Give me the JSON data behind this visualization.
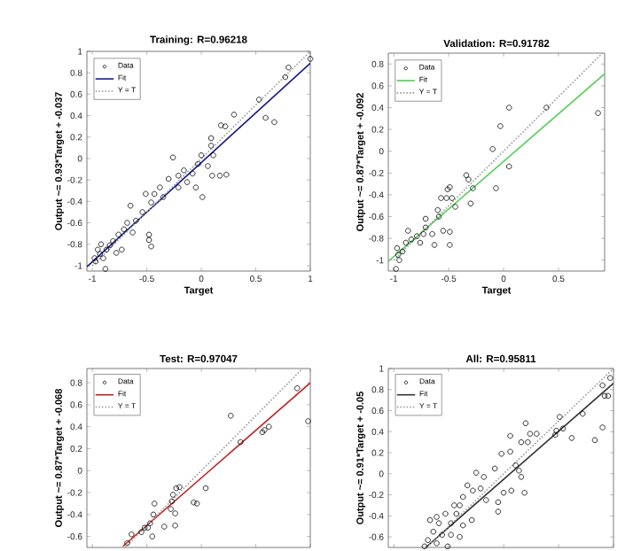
{
  "chart_data": [
    {
      "type": "scatter",
      "title": "Training: R=0.96218",
      "xlabel": "Target",
      "ylabel": "Output ~= 0.93*Target + -0.037",
      "xlim": [
        -1.05,
        1.0
      ],
      "ylim": [
        -1.05,
        1.0
      ],
      "xticks": [
        -1,
        -0.5,
        0,
        0.5,
        1
      ],
      "yticks": [
        -1,
        -0.8,
        -0.6,
        -0.4,
        -0.2,
        0,
        0.2,
        0.4,
        0.6,
        0.8,
        1
      ],
      "legend": "top left",
      "grid": false,
      "series": [
        {
          "name": "Data",
          "type": "scatter",
          "marker": "circle",
          "color": "#000000",
          "x": [
            1.0,
            0.8,
            0.77,
            0.67,
            0.59,
            0.53,
            0.3,
            0.22,
            0.18,
            0.09,
            0.09,
            0.0,
            -0.03,
            0.17,
            0.23,
            0.1,
            0.01,
            -0.26,
            -0.16,
            -0.08,
            -0.21,
            -0.3,
            -0.38,
            -0.43,
            -0.46,
            -0.54,
            -0.6,
            -0.71,
            -0.76,
            -0.48,
            -0.46,
            -0.48,
            -0.63,
            -0.68,
            -0.81,
            -0.87,
            -0.9,
            -0.93,
            -0.97,
            -0.88,
            -0.84,
            -0.78,
            -0.73,
            -0.92,
            -0.95,
            -0.98,
            -0.65,
            -0.51,
            -0.35,
            -0.21,
            -0.13,
            -0.05,
            0.06,
            0.11
          ],
          "values": [
            0.93,
            0.85,
            0.76,
            0.34,
            0.38,
            0.55,
            0.41,
            0.3,
            0.31,
            0.19,
            0.12,
            0.03,
            -0.05,
            -0.16,
            -0.15,
            -0.16,
            -0.36,
            0.01,
            -0.11,
            -0.14,
            -0.16,
            -0.19,
            -0.27,
            -0.33,
            -0.41,
            -0.5,
            -0.58,
            -0.66,
            -0.71,
            -0.71,
            -0.82,
            -0.76,
            -0.69,
            -0.6,
            -0.77,
            -0.85,
            -0.93,
            -0.89,
            -0.96,
            -1.03,
            -0.81,
            -0.88,
            -0.85,
            -0.8,
            -0.85,
            -0.93,
            -0.44,
            -0.33,
            -0.36,
            -0.27,
            -0.22,
            -0.27,
            -0.07,
            0.03
          ]
        },
        {
          "name": "Fit",
          "type": "line",
          "line_style": "solid",
          "color": "#1a1a8c",
          "x": [
            -1.05,
            1.0
          ],
          "values": [
            -1.01,
            0.89
          ]
        },
        {
          "name": "Y = T",
          "type": "line",
          "line_style": "dotted",
          "color": "#9a9a9a",
          "x": [
            -1.0,
            1.0
          ],
          "values": [
            -1.0,
            1.0
          ]
        }
      ]
    },
    {
      "type": "scatter",
      "title": "Validation: R=0.91782",
      "xlabel": "Target",
      "ylabel": "Output ~= 0.87*Target + -0.092",
      "xlim": [
        -1.05,
        0.92
      ],
      "ylim": [
        -1.1,
        0.9
      ],
      "xticks": [
        -1,
        -0.5,
        0,
        0.5
      ],
      "yticks": [
        -1,
        -0.8,
        -0.6,
        -0.4,
        -0.2,
        0,
        0.2,
        0.4,
        0.6,
        0.8
      ],
      "legend": "top left",
      "grid": false,
      "series": [
        {
          "name": "Data",
          "type": "scatter",
          "marker": "circle",
          "color": "#000000",
          "x": [
            0.86,
            0.39,
            0.05,
            -0.03,
            -0.1,
            0.05,
            -0.07,
            -0.28,
            -0.3,
            -0.34,
            -0.32,
            -0.49,
            -0.51,
            -0.47,
            -0.52,
            -0.44,
            -0.57,
            -0.6,
            -0.59,
            -0.71,
            -0.71,
            -0.55,
            -0.49,
            -0.49,
            -0.65,
            -0.73,
            -0.79,
            -0.84,
            -0.89,
            -0.92,
            -0.96,
            -0.95,
            -0.98,
            -0.87,
            -0.76,
            -0.63,
            -0.97
          ],
          "values": [
            0.35,
            0.4,
            0.4,
            0.23,
            0.02,
            -0.14,
            -0.34,
            -0.34,
            -0.48,
            -0.22,
            -0.26,
            -0.33,
            -0.35,
            -0.43,
            -0.43,
            -0.51,
            -0.43,
            -0.54,
            -0.6,
            -0.62,
            -0.7,
            -0.73,
            -0.74,
            -0.86,
            -0.76,
            -0.76,
            -0.78,
            -0.81,
            -0.84,
            -0.92,
            -0.95,
            -1.0,
            -1.08,
            -0.73,
            -0.84,
            -0.86,
            -0.89
          ]
        },
        {
          "name": "Fit",
          "type": "line",
          "line_style": "solid",
          "color": "#4fd04f",
          "x": [
            -1.05,
            0.92
          ],
          "values": [
            -1.01,
            0.71
          ]
        },
        {
          "name": "Y = T",
          "type": "line",
          "line_style": "dotted",
          "color": "#9a9a9a",
          "x": [
            -1.0,
            0.9
          ],
          "values": [
            -1.0,
            0.9
          ]
        }
      ]
    },
    {
      "type": "scatter",
      "title": "Test: R=0.97047",
      "ylabel": "Output ~= 0.87*Target + -0.068",
      "xlim": [
        -1.05,
        1.0
      ],
      "ylim": [
        -0.7,
        0.93
      ],
      "xticks": [
        -1,
        -0.5,
        0,
        0.5,
        1
      ],
      "yticks": [
        -0.6,
        -0.4,
        -0.2,
        0,
        0.2,
        0.4,
        0.6,
        0.8
      ],
      "tick_labels": "y",
      "legend": "top left",
      "grid": false,
      "series": [
        {
          "name": "Data",
          "type": "scatter",
          "marker": "circle",
          "color": "#000000",
          "x": [
            0.88,
            0.98,
            0.62,
            0.58,
            0.56,
            0.36,
            0.27,
            0.04,
            -0.04,
            -0.07,
            -0.23,
            -0.2,
            -0.26,
            -0.27,
            -0.28,
            -0.24,
            -0.24,
            -0.34,
            -0.43,
            -0.44,
            -0.47,
            -0.49,
            -0.52,
            -0.55,
            -0.45,
            -0.64,
            -0.68
          ],
          "values": [
            0.75,
            0.45,
            0.4,
            0.37,
            0.35,
            0.26,
            0.5,
            -0.16,
            -0.3,
            -0.29,
            -0.16,
            -0.15,
            -0.22,
            -0.28,
            -0.35,
            -0.39,
            -0.5,
            -0.51,
            -0.3,
            -0.4,
            -0.48,
            -0.52,
            -0.52,
            -0.56,
            -0.6,
            -0.58,
            -0.66
          ]
        },
        {
          "name": "Fit",
          "type": "line",
          "line_style": "solid",
          "color": "#c02020",
          "x": [
            -0.72,
            1.0
          ],
          "values": [
            -0.69,
            0.8
          ]
        },
        {
          "name": "Y = T",
          "type": "line",
          "line_style": "dotted",
          "color": "#9a9a9a",
          "x": [
            -0.7,
            0.93
          ],
          "values": [
            -0.7,
            0.93
          ]
        }
      ]
    },
    {
      "type": "scatter",
      "title": "All: R=0.95811",
      "ylabel": "Output ~= 0.91*Target + -0.05",
      "xlim": [
        -1.05,
        1.0
      ],
      "ylim": [
        -0.7,
        1.0
      ],
      "xticks": [
        -1,
        -0.5,
        0,
        0.5,
        1
      ],
      "yticks": [
        -0.6,
        -0.4,
        -0.2,
        0,
        0.2,
        0.4,
        0.6,
        0.8,
        1
      ],
      "tick_labels": "y",
      "legend": "top left",
      "grid": false,
      "series": [
        {
          "name": "Data",
          "type": "scatter",
          "marker": "circle",
          "color": "#000000",
          "x": [
            0.97,
            0.9,
            0.92,
            0.95,
            0.9,
            0.83,
            0.72,
            0.51,
            0.54,
            0.48,
            0.47,
            0.62,
            0.2,
            0.24,
            0.3,
            0.16,
            0.22,
            0.06,
            -0.02,
            0.06,
            -0.08,
            0.11,
            0.14,
            0.16,
            0.19,
            0.07,
            0.0,
            -0.05,
            -0.05,
            -0.18,
            -0.25,
            -0.28,
            -0.16,
            -0.21,
            -0.33,
            -0.37,
            -0.4,
            -0.45,
            -0.43,
            -0.53,
            -0.61,
            -0.67,
            -0.59,
            -0.48,
            -0.37,
            -0.29,
            -0.64,
            -0.56,
            -0.48,
            -0.4,
            -0.69,
            -0.61,
            -0.51,
            -0.72
          ],
          "values": [
            0.91,
            0.84,
            0.74,
            0.74,
            0.44,
            0.32,
            0.57,
            0.54,
            0.43,
            0.41,
            0.37,
            0.34,
            0.48,
            0.38,
            0.38,
            0.3,
            0.3,
            0.36,
            0.19,
            0.21,
            0.05,
            0.08,
            0.03,
            -0.03,
            -0.18,
            -0.16,
            -0.18,
            -0.27,
            -0.36,
            -0.03,
            0.01,
            -0.16,
            -0.25,
            -0.14,
            -0.11,
            -0.22,
            -0.3,
            -0.3,
            -0.38,
            -0.38,
            -0.41,
            -0.44,
            -0.47,
            -0.47,
            -0.49,
            -0.44,
            -0.55,
            -0.58,
            -0.58,
            -0.6,
            -0.63,
            -0.66,
            -0.69,
            -0.69
          ]
        },
        {
          "name": "Fit",
          "type": "line",
          "line_style": "solid",
          "color": "#333333",
          "x": [
            -0.71,
            1.0
          ],
          "values": [
            -0.7,
            0.86
          ]
        },
        {
          "name": "Y = T",
          "type": "line",
          "line_style": "dotted",
          "color": "#9a9a9a",
          "x": [
            -0.7,
            1.0
          ],
          "values": [
            -0.7,
            1.0
          ]
        }
      ]
    }
  ]
}
